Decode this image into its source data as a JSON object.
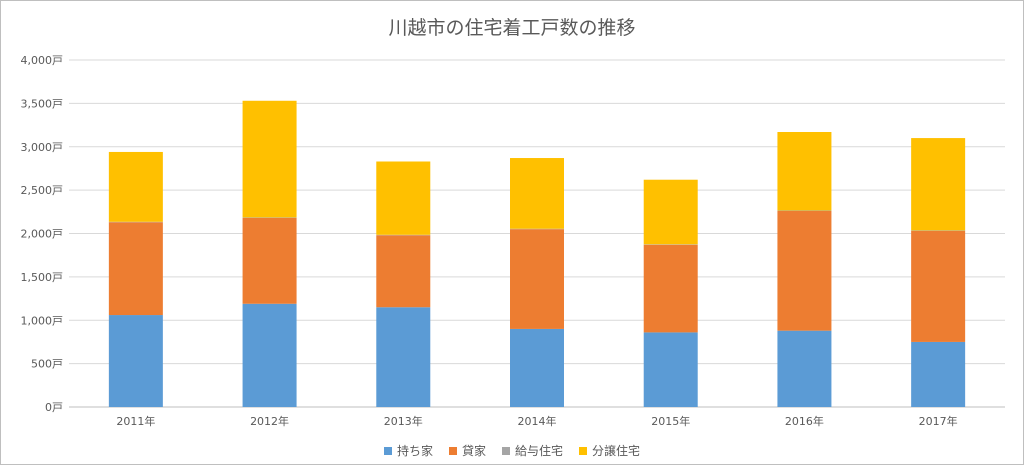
{
  "chart_data": {
    "type": "bar",
    "stacked": true,
    "title": "川越市の住宅着工戸数の推移",
    "xlabel": "",
    "ylabel": "",
    "categories": [
      "2011年",
      "2012年",
      "2013年",
      "2014年",
      "2015年",
      "2016年",
      "2017年"
    ],
    "ylim": [
      0,
      4000
    ],
    "yticks": [
      {
        "value": 0,
        "label": "0戸"
      },
      {
        "value": 500,
        "label": "500戸"
      },
      {
        "value": 1000,
        "label": "1,000戸"
      },
      {
        "value": 1500,
        "label": "1,500戸"
      },
      {
        "value": 2000,
        "label": "2,000戸"
      },
      {
        "value": 2500,
        "label": "2,500戸"
      },
      {
        "value": 3000,
        "label": "3,000戸"
      },
      {
        "value": 3500,
        "label": "3,500戸"
      },
      {
        "value": 4000,
        "label": "4,000戸"
      }
    ],
    "grid": true,
    "legend_position": "bottom",
    "series": [
      {
        "name": "持ち家",
        "color": "#5B9BD5",
        "values": [
          1060,
          1190,
          1150,
          900,
          860,
          880,
          750
        ]
      },
      {
        "name": "貸家",
        "color": "#ED7D31",
        "values": [
          1070,
          990,
          830,
          1150,
          1010,
          1380,
          1280
        ]
      },
      {
        "name": "給与住宅",
        "color": "#A5A5A5",
        "values": [
          5,
          5,
          5,
          5,
          5,
          5,
          5
        ]
      },
      {
        "name": "分譲住宅",
        "color": "#FFC000",
        "values": [
          805,
          1345,
          845,
          815,
          745,
          905,
          1065
        ]
      }
    ]
  }
}
